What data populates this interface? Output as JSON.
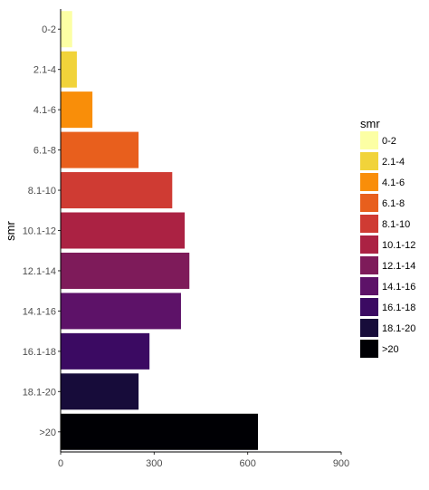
{
  "chart_data": {
    "type": "bar",
    "orientation": "horizontal",
    "categories": [
      "0-2",
      "2.1-4",
      "4.1-6",
      "6.1-8",
      "8.1-10",
      "10.1-12",
      "12.1-14",
      "14.1-16",
      "16.1-18",
      "18.1-20",
      ">20"
    ],
    "values": [
      37,
      52,
      102,
      250,
      358,
      398,
      413,
      386,
      285,
      250,
      633
    ],
    "colors": [
      "#FCFFA4",
      "#F1D33A",
      "#F98E09",
      "#E85F1D",
      "#CF3B33",
      "#AB2243",
      "#7E1B5A",
      "#5D1268",
      "#3B0A62",
      "#170C3A",
      "#000004"
    ],
    "xlabel": "",
    "ylabel": "smr",
    "xlim": [
      0,
      900
    ],
    "xticks": [
      0,
      300,
      600,
      900
    ],
    "grid": false,
    "legend": {
      "title": "smr",
      "position": "right",
      "labels": [
        "0-2",
        "2.1-4",
        "4.1-6",
        "6.1-8",
        "8.1-10",
        "10.1-12",
        "12.1-14",
        "14.1-16",
        "16.1-18",
        "18.1-20",
        ">20"
      ]
    }
  }
}
